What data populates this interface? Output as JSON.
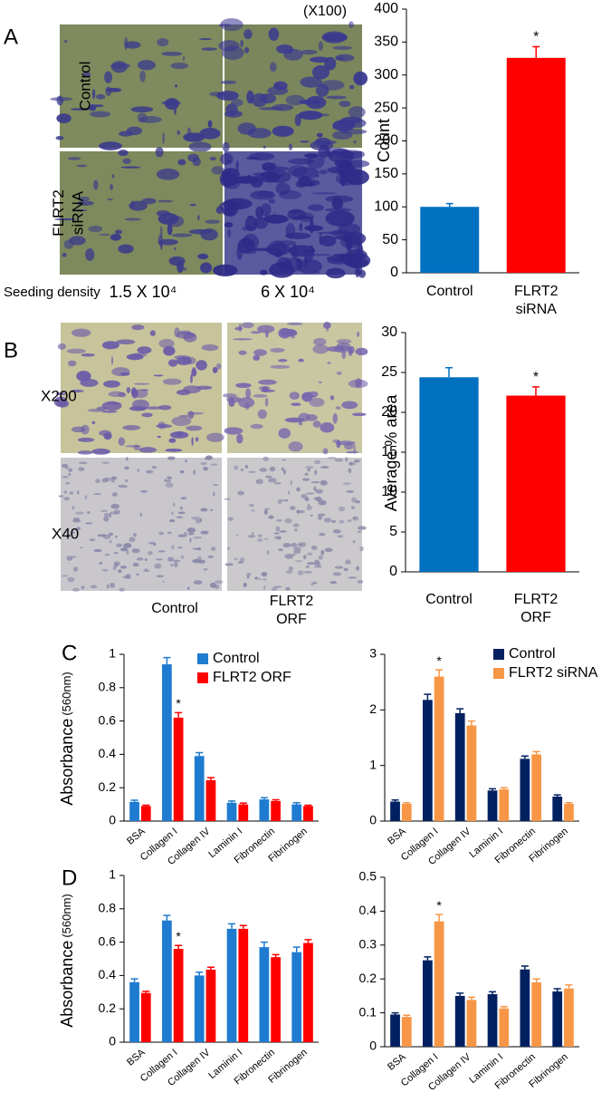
{
  "figure": {
    "panel_labels": [
      "A",
      "B",
      "C",
      "D"
    ],
    "panel_a": {
      "magnification": "(X100)",
      "row_labels": [
        "Control",
        "FLRT2 siRNA"
      ],
      "seeding_label": "Seeding density",
      "densities": [
        "1.5 X 10⁴",
        "6 X 10⁴"
      ]
    },
    "panel_b": {
      "row_labels": [
        "X200",
        "X40"
      ],
      "col_labels": [
        "Control",
        "FLRT2 ORF"
      ]
    }
  },
  "chart_data": [
    {
      "type": "bar",
      "ylabel": "Count",
      "categories": [
        "Control",
        "FLRT2 siRNA"
      ],
      "values": [
        100,
        326
      ],
      "errors": [
        5,
        17
      ],
      "colors": [
        "#0070c0",
        "#ff0000"
      ],
      "ylim": [
        0,
        400
      ],
      "yticks": [
        0,
        50,
        100,
        150,
        200,
        250,
        300,
        350,
        400
      ],
      "annotations": [
        {
          "text": "*",
          "category": "FLRT2 siRNA"
        }
      ]
    },
    {
      "type": "bar",
      "ylabel": "Average % area",
      "categories": [
        "Control",
        "FLRT2 ORF"
      ],
      "values": [
        24.4,
        22.1
      ],
      "errors": [
        1.2,
        1.1
      ],
      "colors": [
        "#0070c0",
        "#ff0000"
      ],
      "ylim": [
        0,
        30
      ],
      "yticks": [
        0,
        5,
        10,
        15,
        20,
        25,
        30
      ],
      "annotations": [
        {
          "text": "*",
          "category": "FLRT2 ORF"
        }
      ]
    },
    {
      "type": "grouped-bar",
      "ylabel": "Absorbance",
      "ylabel_unit": "(560nm)",
      "legend": "top-right",
      "categories": [
        "BSA",
        "Collagen I",
        "Collagen IV",
        "Laminin I",
        "Fibronectin",
        "Fibrinogen"
      ],
      "series": [
        {
          "name": "Control",
          "color": "#1f7bd0",
          "values": [
            0.115,
            0.94,
            0.39,
            0.11,
            0.13,
            0.1
          ],
          "errors": [
            0.01,
            0.04,
            0.02,
            0.01,
            0.01,
            0.01
          ]
        },
        {
          "name": "FLRT2 ORF",
          "color": "#ff0000",
          "values": [
            0.09,
            0.62,
            0.245,
            0.1,
            0.12,
            0.09
          ],
          "errors": [
            0.005,
            0.03,
            0.015,
            0.008,
            0.008,
            0.005
          ]
        }
      ],
      "ylim": [
        0,
        1
      ],
      "yticks": [
        0,
        0.2,
        0.4,
        0.6,
        0.8,
        1
      ],
      "annotations": [
        {
          "text": "*",
          "category": "Collagen I",
          "series": "FLRT2 ORF"
        }
      ]
    },
    {
      "type": "grouped-bar",
      "legend": "top-right",
      "categories": [
        "BSA",
        "Collagen I",
        "Collagen IV",
        "Laminin I",
        "Fibronectin",
        "Fibrinogen"
      ],
      "series": [
        {
          "name": "Control",
          "color": "#002060",
          "values": [
            0.35,
            2.18,
            1.94,
            0.55,
            1.12,
            0.44
          ],
          "errors": [
            0.03,
            0.1,
            0.08,
            0.03,
            0.05,
            0.03
          ]
        },
        {
          "name": "FLRT2 siRNA",
          "color": "#f79646",
          "values": [
            0.31,
            2.6,
            1.72,
            0.57,
            1.2,
            0.31
          ],
          "errors": [
            0.02,
            0.12,
            0.08,
            0.03,
            0.05,
            0.02
          ]
        }
      ],
      "ylim": [
        0,
        3
      ],
      "yticks": [
        0,
        1,
        2,
        3
      ],
      "annotations": [
        {
          "text": "*",
          "category": "Collagen I",
          "series": "FLRT2 siRNA"
        }
      ]
    },
    {
      "type": "grouped-bar",
      "ylabel": "Absorbance",
      "ylabel_unit": "(560nm)",
      "categories": [
        "BSA",
        "Collagen I",
        "Collagen IV",
        "Laminin I",
        "Fibronectin",
        "Fibrinogen"
      ],
      "series": [
        {
          "name": "Control",
          "color": "#1f7bd0",
          "values": [
            0.36,
            0.73,
            0.4,
            0.68,
            0.57,
            0.54
          ],
          "errors": [
            0.02,
            0.03,
            0.02,
            0.03,
            0.03,
            0.03
          ]
        },
        {
          "name": "FLRT2 ORF",
          "color": "#ff0000",
          "values": [
            0.295,
            0.56,
            0.435,
            0.68,
            0.51,
            0.595
          ],
          "errors": [
            0.01,
            0.02,
            0.015,
            0.02,
            0.015,
            0.02
          ]
        }
      ],
      "ylim": [
        0,
        1
      ],
      "yticks": [
        0,
        0.2,
        0.4,
        0.6,
        0.8,
        1
      ],
      "annotations": [
        {
          "text": "*",
          "category": "Collagen I",
          "series": "FLRT2 ORF"
        }
      ]
    },
    {
      "type": "grouped-bar",
      "categories": [
        "BSA",
        "Collagen I",
        "Collagen IV",
        "Laminin I",
        "Fibronectin",
        "Fibrinogen"
      ],
      "series": [
        {
          "name": "Control",
          "color": "#002060",
          "values": [
            0.095,
            0.255,
            0.15,
            0.155,
            0.228,
            0.163
          ],
          "errors": [
            0.005,
            0.01,
            0.008,
            0.007,
            0.01,
            0.008
          ]
        },
        {
          "name": "FLRT2 siRNA",
          "color": "#f79646",
          "values": [
            0.088,
            0.37,
            0.138,
            0.113,
            0.19,
            0.172
          ],
          "errors": [
            0.005,
            0.02,
            0.008,
            0.005,
            0.01,
            0.01
          ]
        }
      ],
      "ylim": [
        0,
        0.5
      ],
      "yticks": [
        0,
        0.1,
        0.2,
        0.3,
        0.4,
        0.5
      ],
      "annotations": [
        {
          "text": "*",
          "category": "Collagen I",
          "series": "FLRT2 siRNA"
        }
      ]
    }
  ]
}
